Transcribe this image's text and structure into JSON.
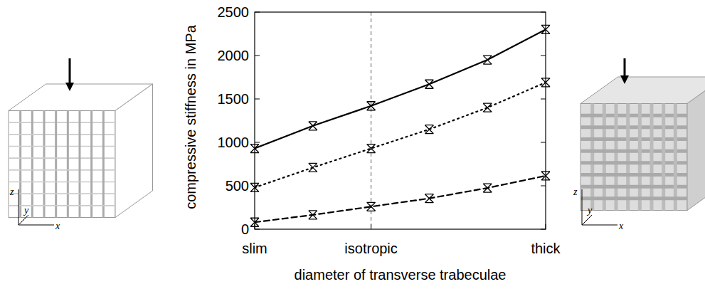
{
  "chart_data": {
    "type": "line",
    "x_label": "diameter of transverse trabeculae",
    "y_label": "compressive stiffness in MPa",
    "categories": [
      "slim",
      null,
      "isotropic",
      null,
      null,
      "thick"
    ],
    "reference_x": 2,
    "series": [
      {
        "color": "#000000",
        "line_style": "solid",
        "marker": "asterisk",
        "values": [
          930,
          1190,
          1420,
          1670,
          1950,
          2300
        ]
      },
      {
        "color": "#000000",
        "line_style": "dotted",
        "marker": "asterisk",
        "values": [
          480,
          710,
          930,
          1150,
          1400,
          1690
        ]
      },
      {
        "color": "#000000",
        "line_style": "dashed",
        "marker": "asterisk",
        "values": [
          80,
          165,
          260,
          355,
          475,
          615
        ]
      }
    ],
    "ylim": [
      0,
      2500
    ],
    "yticks": [
      0,
      500,
      1000,
      1500,
      2000,
      2500
    ],
    "grid": false
  },
  "illustrations": {
    "axes": [
      "x",
      "y",
      "z"
    ]
  }
}
